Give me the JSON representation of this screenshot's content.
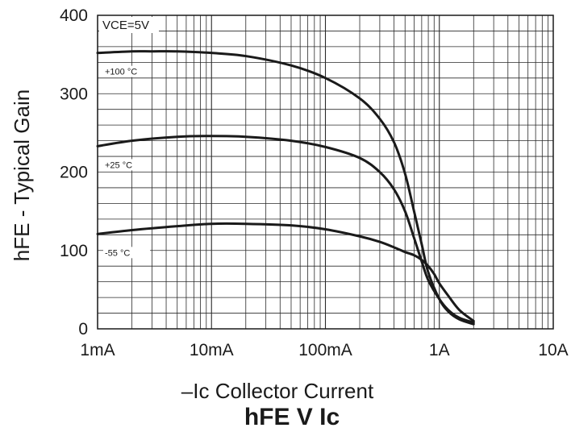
{
  "chart_data": {
    "type": "line",
    "title": "hFE V Ic",
    "xlabel": "–Ic Collector Current",
    "ylabel": "hFE - Typical Gain",
    "annotation": "VCE=5V",
    "x_scale": "log",
    "xlim": [
      0.001,
      10
    ],
    "ylim": [
      0,
      400
    ],
    "x_ticks": [
      {
        "value": 0.001,
        "label": "1mA"
      },
      {
        "value": 0.01,
        "label": "10mA"
      },
      {
        "value": 0.1,
        "label": "100mA"
      },
      {
        "value": 1,
        "label": "1A"
      },
      {
        "value": 10,
        "label": "10A"
      }
    ],
    "y_ticks": [
      {
        "value": 0,
        "label": "0"
      },
      {
        "value": 100,
        "label": "100"
      },
      {
        "value": 200,
        "label": "200"
      },
      {
        "value": 300,
        "label": "300"
      },
      {
        "value": 400,
        "label": "400"
      }
    ],
    "grid": true,
    "series": [
      {
        "name": "+100 °C",
        "x": [
          0.001,
          0.002,
          0.003,
          0.005,
          0.01,
          0.02,
          0.05,
          0.1,
          0.2,
          0.3,
          0.4,
          0.5,
          0.6,
          0.7,
          0.8,
          1.0,
          1.2,
          1.5,
          2.0
        ],
        "y": [
          352,
          354,
          354,
          354,
          352,
          348,
          336,
          320,
          294,
          268,
          238,
          198,
          150,
          108,
          72,
          38,
          22,
          12,
          6
        ]
      },
      {
        "name": "+25 °C",
        "x": [
          0.001,
          0.002,
          0.005,
          0.01,
          0.02,
          0.05,
          0.1,
          0.2,
          0.3,
          0.4,
          0.5,
          0.6,
          0.7,
          0.8,
          1.0,
          1.2,
          1.5,
          2.0
        ],
        "y": [
          233,
          240,
          245,
          246,
          245,
          240,
          232,
          218,
          200,
          178,
          150,
          116,
          86,
          62,
          38,
          24,
          14,
          8
        ]
      },
      {
        "name": "-55 °C",
        "x": [
          0.001,
          0.002,
          0.005,
          0.01,
          0.02,
          0.05,
          0.1,
          0.2,
          0.3,
          0.4,
          0.5,
          0.6,
          0.7,
          0.8,
          0.9,
          1.0,
          1.2,
          1.5,
          2.0
        ],
        "y": [
          121,
          126,
          131,
          134,
          134,
          132,
          127,
          118,
          111,
          104,
          98,
          94,
          88,
          80,
          70,
          58,
          42,
          24,
          10
        ]
      }
    ]
  },
  "series_label_styles": {
    "color": "#1a1a1a"
  }
}
